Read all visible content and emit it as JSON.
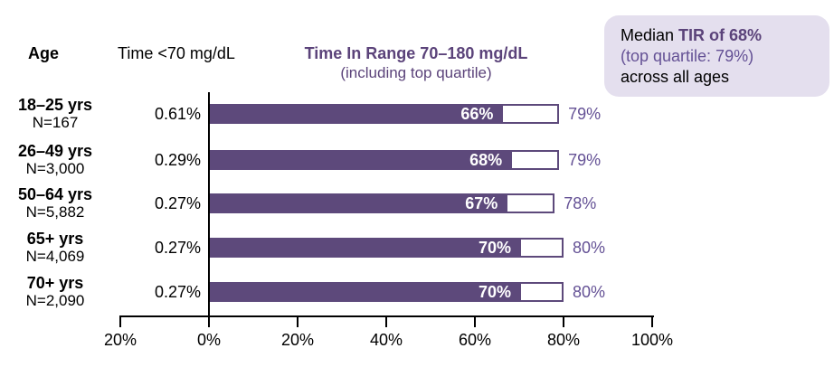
{
  "header": {
    "age": "Age",
    "hypo": "Time <70 mg/dL",
    "title": "Time In Range 70–180 mg/dL",
    "subtitle": "(including top quartile)"
  },
  "callout": {
    "prefix": "Median ",
    "highlight": "TIR of 68%",
    "line2": "(top quartile: 79%)",
    "line3": "across all ages"
  },
  "chart_data": {
    "type": "bar",
    "orientation": "horizontal",
    "title": "Time In Range 70–180 mg/dL (including top quartile)",
    "categories": [
      "18–25 yrs",
      "26–49 yrs",
      "50–64 yrs",
      "65+ yrs",
      "70+ yrs"
    ],
    "n_labels": [
      "N=167",
      "N=3,000",
      "N=5,882",
      "N=4,069",
      "N=2,090"
    ],
    "series": [
      {
        "name": "Time <70 mg/dL",
        "values": [
          0.61,
          0.29,
          0.27,
          0.27,
          0.27
        ],
        "labels": [
          "0.61%",
          "0.29%",
          "0.27%",
          "0.27%",
          "0.27%"
        ]
      },
      {
        "name": "Median TIR 70–180 mg/dL",
        "values": [
          66,
          68,
          67,
          70,
          70
        ],
        "labels": [
          "66%",
          "68%",
          "67%",
          "70%",
          "70%"
        ]
      },
      {
        "name": "Top quartile TIR",
        "values": [
          79,
          79,
          78,
          80,
          80
        ],
        "labels": [
          "79%",
          "79%",
          "78%",
          "80%",
          "80%"
        ]
      }
    ],
    "x_axis": {
      "tick_labels": [
        "20%",
        "0%",
        "20%",
        "40%",
        "60%",
        "80%",
        "100%"
      ],
      "tick_values": [
        -20,
        0,
        20,
        40,
        60,
        80,
        100
      ],
      "xlim": [
        -20,
        100
      ]
    },
    "grid": false,
    "legend": false
  },
  "colors": {
    "bar_purple": "#5d497b",
    "title_purple": "#5b437a",
    "quartile_text_purple": "#645195",
    "callout_bg": "#e4dfee",
    "axis_black": "#000000",
    "bar_label_white": "#ffffff"
  }
}
